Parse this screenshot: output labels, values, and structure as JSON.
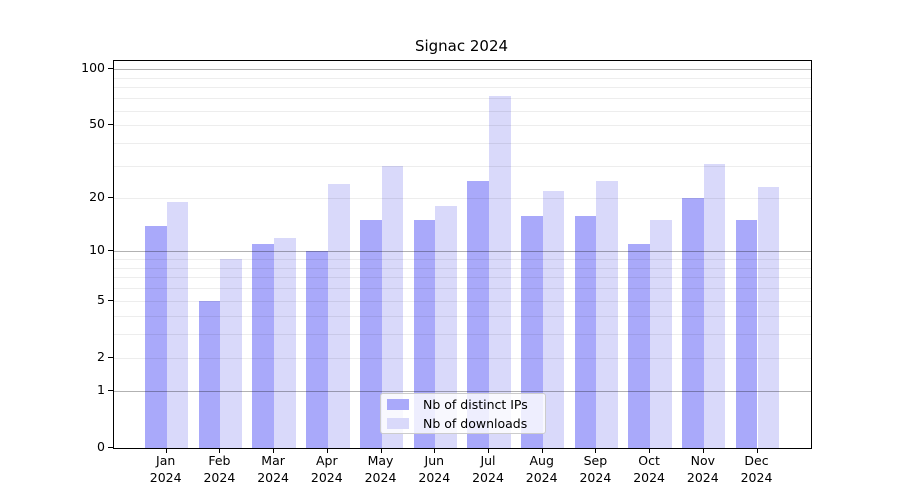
{
  "title": "Signac 2024",
  "chart_data": {
    "type": "bar",
    "title": "Signac 2024",
    "categories": [
      "Jan 2024",
      "Feb 2024",
      "Mar 2024",
      "Apr 2024",
      "May 2024",
      "Jun 2024",
      "Jul 2024",
      "Aug 2024",
      "Sep 2024",
      "Oct 2024",
      "Nov 2024",
      "Dec 2024"
    ],
    "months": [
      "Jan",
      "Feb",
      "Mar",
      "Apr",
      "May",
      "Jun",
      "Jul",
      "Aug",
      "Sep",
      "Oct",
      "Nov",
      "Dec"
    ],
    "year": "2024",
    "series": [
      {
        "name": "Nb of distinct IPs",
        "color": "#a9a9fa",
        "values": [
          14,
          5,
          11,
          10,
          15,
          15,
          25,
          16,
          16,
          11,
          20,
          15
        ]
      },
      {
        "name": "Nb of downloads",
        "color": "#d9d9fa",
        "values": [
          19,
          9,
          12,
          24,
          30,
          18,
          72,
          22,
          25,
          15,
          31,
          23
        ]
      }
    ],
    "yscale": "log1p",
    "y_axis_top_value": 110.6,
    "y_tick_values": [
      0,
      1,
      2,
      5,
      10,
      20,
      50,
      100
    ],
    "y_major_gridlines": [
      1,
      10,
      100
    ],
    "y_minor_gridlines": [
      2,
      3,
      4,
      5,
      6,
      7,
      8,
      9,
      20,
      30,
      40,
      50,
      60,
      70,
      80,
      90
    ],
    "xlabel": "",
    "ylabel": "",
    "grid": true,
    "legend_position": "lower center"
  },
  "colors": {
    "major_grid": "rgba(0,0,0,0.30)",
    "minor_grid": "rgba(0,0,0,0.07)",
    "spine": "#000000",
    "background": "#ffffff",
    "legend_border": "#cccccc"
  }
}
